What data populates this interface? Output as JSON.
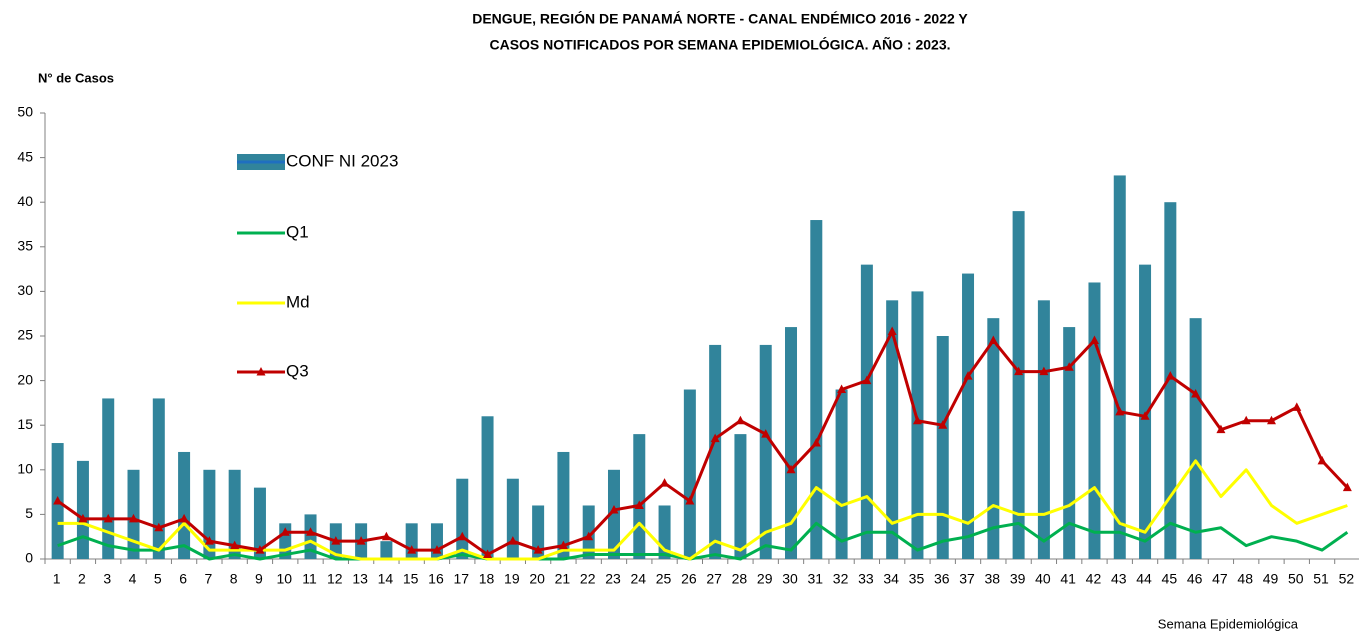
{
  "chart_data": {
    "type": "bar_line",
    "title": [
      "DENGUE, REGIÓN DE PANAMÁ NORTE - CANAL ENDÉMICO  2016 - 2022 Y",
      "CASOS NOTIFICADOS POR SEMANA EPIDEMIOLÓGICA. AÑO : 2023."
    ],
    "y_axis_label": "N° de Casos",
    "x_axis_label": "Semana Epidemiológica",
    "categories": [
      "1",
      "2",
      "3",
      "4",
      "5",
      "6",
      "7",
      "8",
      "9",
      "10",
      "11",
      "12",
      "13",
      "14",
      "15",
      "16",
      "17",
      "18",
      "19",
      "20",
      "21",
      "22",
      "23",
      "24",
      "25",
      "26",
      "27",
      "28",
      "29",
      "30",
      "31",
      "32",
      "33",
      "34",
      "35",
      "36",
      "37",
      "38",
      "39",
      "40",
      "41",
      "42",
      "43",
      "44",
      "45",
      "46",
      "47",
      "48",
      "49",
      "50",
      "51",
      "52"
    ],
    "series": [
      {
        "name": "CONF NI 2023",
        "kind": "bar",
        "color": "#31849b",
        "values": [
          13,
          11,
          18,
          10,
          18,
          12,
          10,
          10,
          8,
          4,
          5,
          4,
          4,
          2,
          4,
          4,
          9,
          16,
          9,
          6,
          12,
          6,
          10,
          14,
          6,
          19,
          24,
          14,
          24,
          26,
          38,
          19,
          33,
          29,
          30,
          25,
          32,
          27,
          39,
          29,
          26,
          31,
          43,
          33,
          40,
          27,
          null,
          null,
          null,
          null,
          null,
          null
        ]
      },
      {
        "name": "Q1",
        "kind": "line",
        "color": "#00b050",
        "values": [
          1.5,
          2.5,
          1.5,
          1,
          1,
          1.5,
          0,
          0.5,
          0,
          0.5,
          1,
          0,
          0,
          0,
          0,
          0,
          0.5,
          0,
          0,
          0,
          0,
          0.5,
          0.5,
          0.5,
          0.5,
          0,
          0.5,
          0,
          1.5,
          1,
          4,
          2,
          3,
          3,
          1,
          2,
          2.5,
          3.5,
          4,
          2,
          4,
          3,
          3,
          2,
          4,
          3,
          3.5,
          1.5,
          2.5,
          2,
          1,
          3
        ]
      },
      {
        "name": "Md",
        "kind": "line",
        "color": "#ffff00",
        "values": [
          4,
          4,
          3,
          2,
          1,
          4,
          1,
          1,
          1,
          1,
          2,
          0.5,
          0,
          0,
          0,
          0,
          1,
          0,
          0,
          0,
          1,
          1,
          1,
          4,
          1,
          0,
          2,
          1,
          3,
          4,
          8,
          6,
          7,
          4,
          5,
          5,
          4,
          6,
          5,
          5,
          6,
          8,
          4,
          3,
          7,
          11,
          7,
          10,
          6,
          4,
          5,
          6
        ]
      },
      {
        "name": "Q3",
        "kind": "line",
        "marker": "triangle",
        "color": "#c00000",
        "values": [
          6.5,
          4.5,
          4.5,
          4.5,
          3.5,
          4.5,
          2,
          1.5,
          1,
          3,
          3,
          2,
          2,
          2.5,
          1,
          1,
          2.5,
          0.5,
          2,
          1,
          1.5,
          2.5,
          5.5,
          6,
          8.5,
          6.5,
          13.5,
          15.5,
          14,
          10,
          13,
          19,
          20,
          25.5,
          15.5,
          15,
          20.5,
          24.5,
          21,
          21,
          21.5,
          24.5,
          16.5,
          16,
          20.5,
          18.5,
          14.5,
          15.5,
          15.5,
          17,
          11,
          8
        ]
      }
    ],
    "ylim": [
      0,
      50
    ],
    "yticks": [
      0,
      5,
      10,
      15,
      20,
      25,
      30,
      35,
      40,
      45,
      50
    ],
    "grid": false
  }
}
